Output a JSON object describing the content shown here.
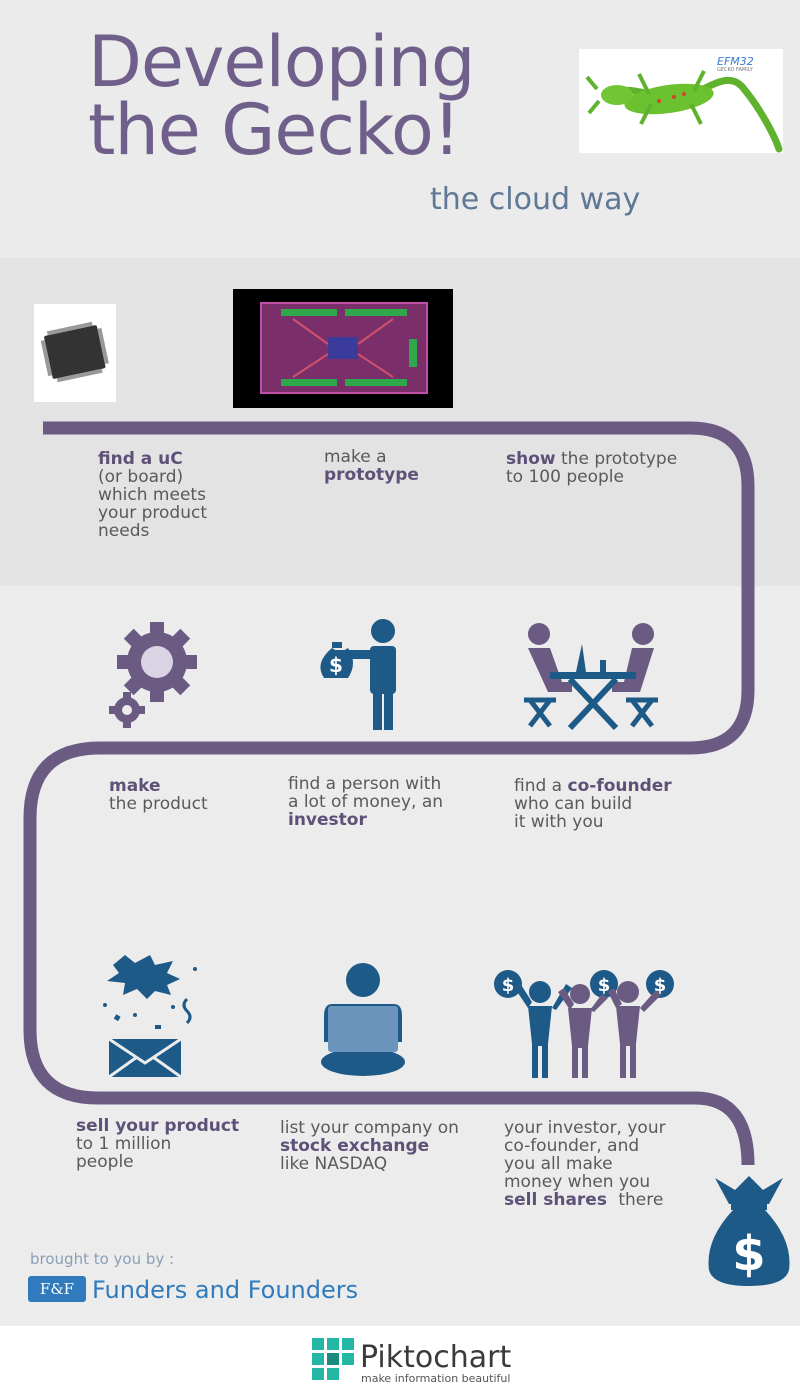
{
  "header": {
    "title_line1": "Developing",
    "title_line2": "the Gecko!",
    "subtitle": "the cloud way",
    "logo_text1": "EFM32",
    "logo_text2": "GECKO FAMILY"
  },
  "steps": [
    {
      "bold": "find a uC",
      "rest": [
        "(or board)",
        "which meets",
        "your product",
        "needs"
      ]
    },
    {
      "pre": "make a",
      "bold": "prototype"
    },
    {
      "bold": "show",
      "post": "the prototype",
      "line2": "to 100 people"
    },
    {
      "bold": "make",
      "line2": "the product"
    },
    {
      "lines": [
        "find a person with",
        "a lot of money, an"
      ],
      "bold": "investor"
    },
    {
      "pre": "find a",
      "bold": "co-founder",
      "lines": [
        "who can build",
        "it with you"
      ]
    },
    {
      "bold": "sell your product",
      "lines": [
        "to 1 million",
        "people"
      ]
    },
    {
      "pre": "list your company on",
      "bold": "stock exchange",
      "post": "like NASDAQ"
    },
    {
      "lines": [
        "your investor, your",
        "co-founder, and",
        "you all make",
        "money when you"
      ],
      "bold": "sell shares",
      "post": "there"
    }
  ],
  "footer": {
    "brought": "brought to you by :",
    "ff_logo": "F&F",
    "ff_name": "Funders and Founders",
    "pk_name": "Piktochart",
    "pk_tagline": "make information beautiful"
  },
  "colors": {
    "path": "#6b5b83",
    "purple": "#6f5f8a",
    "blue": "#1e5a87",
    "text": "#5a5a5a"
  }
}
